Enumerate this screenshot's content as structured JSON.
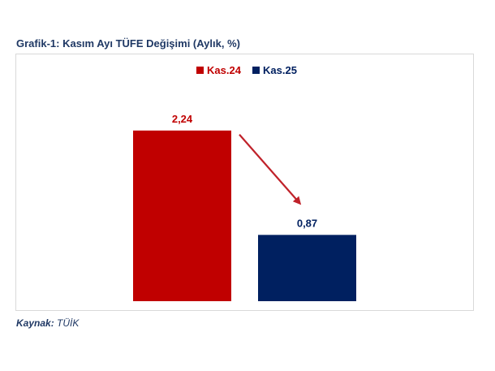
{
  "chart_data": {
    "type": "bar",
    "title": "Grafik-1: Kasım Ayı TÜFE Değişimi (Aylık, %)",
    "categories": [
      "Kas.24",
      "Kas.25"
    ],
    "values": [
      2.24,
      0.87
    ],
    "value_labels": [
      "2,24",
      "0,87"
    ],
    "series": [
      {
        "name": "Kas.24",
        "value": 2.24,
        "label": "2,24",
        "color": "#c00000"
      },
      {
        "name": "Kas.25",
        "value": 0.87,
        "label": "0,87",
        "color": "#002060"
      }
    ],
    "legend_position": "top-center",
    "grid": false,
    "ylim": [
      0,
      2.6
    ],
    "annotation": "arrow",
    "arrow_color": "#c0222a"
  },
  "source": {
    "label": "Kaynak:",
    "value": "TÜİK"
  }
}
